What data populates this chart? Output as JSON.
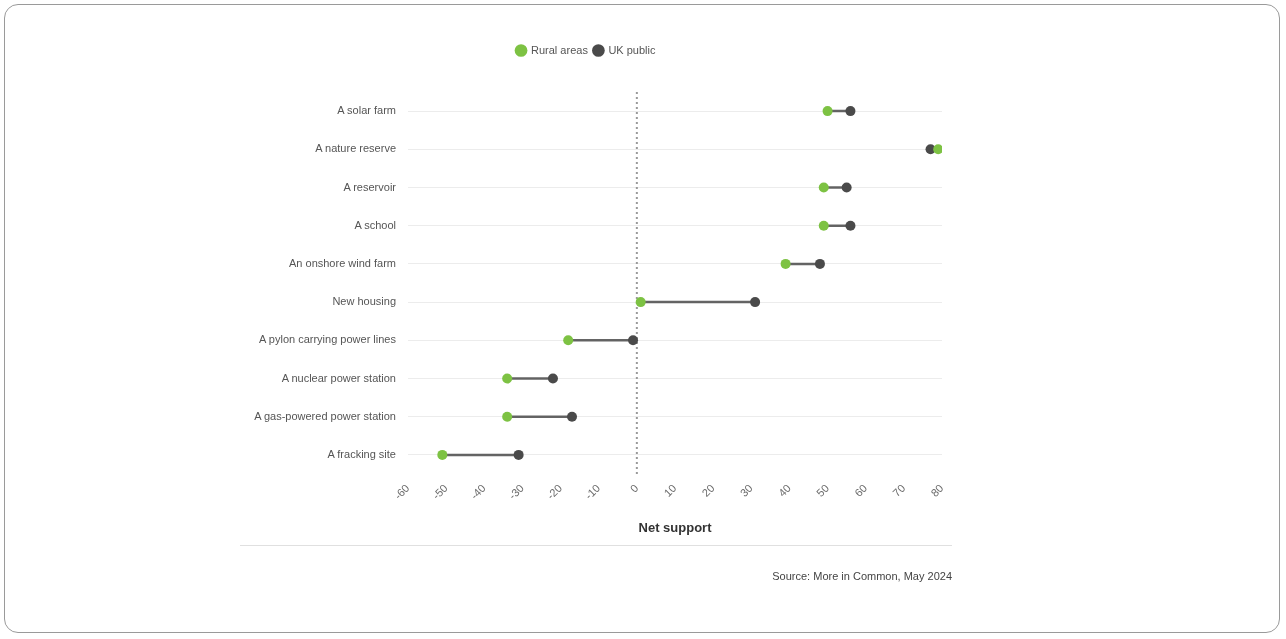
{
  "chart_data": {
    "type": "scatter",
    "orientation": "horizontal",
    "categories": [
      "A solar farm",
      "A nature reserve",
      "A reservoir",
      "A school",
      "An onshore wind farm",
      "New housing",
      "A pylon carrying power lines",
      "A nuclear power station",
      "A gas-powered power station",
      "A fracking site"
    ],
    "series": [
      {
        "name": "Rural areas",
        "color": "#7dc243",
        "values": [
          50,
          79,
          49,
          49,
          39,
          1,
          -18,
          -34,
          -34,
          -51
        ]
      },
      {
        "name": "UK public",
        "color": "#4a4a4a",
        "values": [
          56,
          77,
          55,
          56,
          48,
          31,
          -1,
          -22,
          -17,
          -31
        ]
      }
    ],
    "xlabel": "Net support",
    "xlim": [
      -60,
      80
    ],
    "xticks": [
      -60,
      -50,
      -40,
      -30,
      -20,
      -10,
      0,
      10,
      20,
      30,
      40,
      50,
      60,
      70,
      80
    ],
    "ref_lines": [
      {
        "axis": "x",
        "value": 0,
        "color": "#9a9a9a",
        "line_style": "dotted"
      }
    ],
    "grid": "y",
    "legend": "top",
    "marker": "circle",
    "annotations": [
      "Source: More in Common, May 2024"
    ]
  }
}
